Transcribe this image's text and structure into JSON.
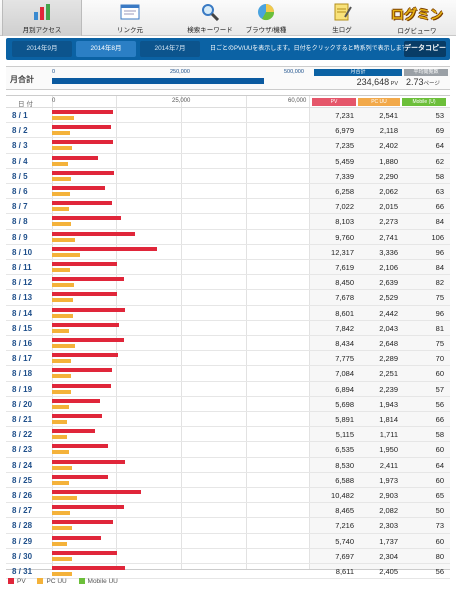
{
  "nav": {
    "tabs": [
      {
        "label": "月別アクセス",
        "icon": "bar-chart-icon"
      },
      {
        "label": "リンク元",
        "icon": "window-icon"
      },
      {
        "label": "検索キーワード",
        "icon": "magnifier-icon"
      },
      {
        "label": "ブラウザ/機種",
        "icon": "pie-chart-icon"
      },
      {
        "label": "生ログ",
        "icon": "notepad-icon"
      }
    ],
    "logo_text": "ログミン",
    "logo_caption": "ログビューワ"
  },
  "months": [
    "2014年9月",
    "2014年8月",
    "2014年7月"
  ],
  "month_note": "日ごとのPV/UUを表示します。日付をクリックすると時系列で表示します",
  "copy_label": "データコピー",
  "summary": {
    "label": "月合計",
    "scale": [
      "0",
      "250,000",
      "500,000"
    ],
    "total_value": 234648,
    "total_header": "月合計",
    "total_display": "234,648",
    "total_unit": "PV",
    "avg_header": "平均閲覧数",
    "avg_display": "2.73",
    "avg_unit": "ページ"
  },
  "table": {
    "date_header": "日付",
    "scale": [
      "0",
      "25,000",
      "60,000"
    ],
    "col_pv": "PV",
    "col_pc": "PC UU",
    "col_mobile": "Mobile (U)"
  },
  "rows": [
    {
      "d": "8 / 1",
      "pv": "7,231",
      "pc": "2,541",
      "m": "53"
    },
    {
      "d": "8 / 2",
      "pv": "6,979",
      "pc": "2,118",
      "m": "69"
    },
    {
      "d": "8 / 3",
      "pv": "7,235",
      "pc": "2,402",
      "m": "64"
    },
    {
      "d": "8 / 4",
      "pv": "5,459",
      "pc": "1,880",
      "m": "62"
    },
    {
      "d": "8 / 5",
      "pv": "7,339",
      "pc": "2,290",
      "m": "58"
    },
    {
      "d": "8 / 6",
      "pv": "6,258",
      "pc": "2,062",
      "m": "63"
    },
    {
      "d": "8 / 7",
      "pv": "7,022",
      "pc": "2,015",
      "m": "66"
    },
    {
      "d": "8 / 8",
      "pv": "8,103",
      "pc": "2,273",
      "m": "84"
    },
    {
      "d": "8 / 9",
      "pv": "9,760",
      "pc": "2,741",
      "m": "106"
    },
    {
      "d": "8 / 10",
      "pv": "12,317",
      "pc": "3,336",
      "m": "96"
    },
    {
      "d": "8 / 11",
      "pv": "7,619",
      "pc": "2,106",
      "m": "84"
    },
    {
      "d": "8 / 12",
      "pv": "8,450",
      "pc": "2,639",
      "m": "82"
    },
    {
      "d": "8 / 13",
      "pv": "7,678",
      "pc": "2,529",
      "m": "75"
    },
    {
      "d": "8 / 14",
      "pv": "8,601",
      "pc": "2,442",
      "m": "96"
    },
    {
      "d": "8 / 15",
      "pv": "7,842",
      "pc": "2,043",
      "m": "81"
    },
    {
      "d": "8 / 16",
      "pv": "8,434",
      "pc": "2,648",
      "m": "75"
    },
    {
      "d": "8 / 17",
      "pv": "7,775",
      "pc": "2,289",
      "m": "70"
    },
    {
      "d": "8 / 18",
      "pv": "7,084",
      "pc": "2,251",
      "m": "60"
    },
    {
      "d": "8 / 19",
      "pv": "6,894",
      "pc": "2,239",
      "m": "57"
    },
    {
      "d": "8 / 20",
      "pv": "5,698",
      "pc": "1,943",
      "m": "56"
    },
    {
      "d": "8 / 21",
      "pv": "5,891",
      "pc": "1,814",
      "m": "66"
    },
    {
      "d": "8 / 22",
      "pv": "5,115",
      "pc": "1,711",
      "m": "58"
    },
    {
      "d": "8 / 23",
      "pv": "6,535",
      "pc": "1,950",
      "m": "60"
    },
    {
      "d": "8 / 24",
      "pv": "8,530",
      "pc": "2,411",
      "m": "64"
    },
    {
      "d": "8 / 25",
      "pv": "6,588",
      "pc": "1,973",
      "m": "60"
    },
    {
      "d": "8 / 26",
      "pv": "10,482",
      "pc": "2,903",
      "m": "65"
    },
    {
      "d": "8 / 27",
      "pv": "8,465",
      "pc": "2,082",
      "m": "50"
    },
    {
      "d": "8 / 28",
      "pv": "7,216",
      "pc": "2,303",
      "m": "73"
    },
    {
      "d": "8 / 29",
      "pv": "5,740",
      "pc": "1,737",
      "m": "60"
    },
    {
      "d": "8 / 30",
      "pv": "7,697",
      "pc": "2,304",
      "m": "80"
    },
    {
      "d": "8 / 31",
      "pv": "8,611",
      "pc": "2,405",
      "m": "56"
    }
  ],
  "legend": [
    "PV",
    "PC UU",
    "Mobile UU"
  ],
  "colors": {
    "pv": "#e0263a",
    "pc": "#f4b23a",
    "mobile": "#6cbf3a",
    "accent": "#0b62a4"
  }
}
